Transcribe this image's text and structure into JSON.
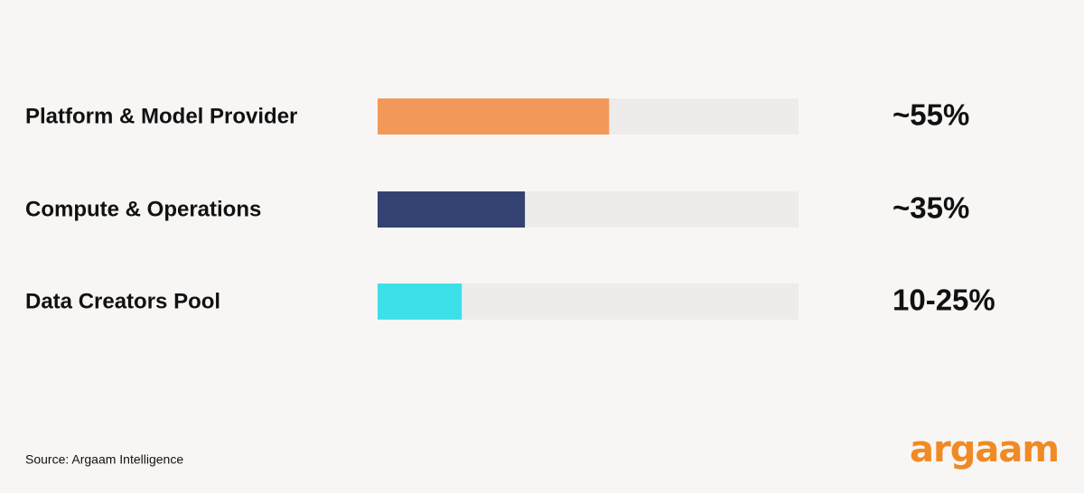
{
  "chart_data": {
    "type": "bar",
    "orientation": "horizontal",
    "categories": [
      "Platform & Model Provider",
      "Compute & Operations",
      "Data Creators Pool"
    ],
    "values": [
      55,
      35,
      20
    ],
    "value_labels": [
      "~55%",
      "~35%",
      "10-25%"
    ],
    "colors": [
      "#f2995a",
      "#334270",
      "#3ddfe9"
    ],
    "track_color": "#eeecea",
    "xlim": [
      0,
      100
    ]
  },
  "footer": {
    "source": "Source: Argaam Intelligence",
    "logo": "argaam"
  }
}
